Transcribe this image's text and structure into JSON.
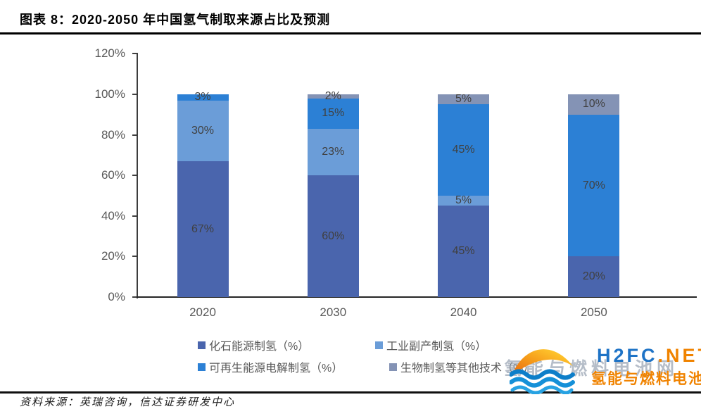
{
  "header": {
    "title": "图表 8：2020-2050 年中国氢气制取来源占比及预测"
  },
  "footer": {
    "source": "资料来源：英瑞咨询，信达证券研发中心"
  },
  "watermark": {
    "brand_blue": "H2FC",
    "brand_orange": ".NET",
    "subtitle": "氢能与燃料电池网",
    "ghost_text": "氢能与燃料电池网",
    "logo_icon": "sun-over-waves-logo",
    "colors": {
      "brand_blue": "#1e73c6",
      "brand_orange": "#f08300",
      "ghost_gray": "#97a2b2",
      "wave_blue": "#1189d4",
      "sun_orange": "#ee7d12",
      "sun_yellow": "#ffc92e"
    }
  },
  "chart_data": {
    "type": "bar",
    "stacked": true,
    "title": "2020-2050 年中国氢气制取来源占比及预测",
    "categories": [
      "2020",
      "2030",
      "2040",
      "2050"
    ],
    "series": [
      {
        "name": "化石能源制氢（%）",
        "color": "#4a65ad",
        "values": [
          67,
          60,
          45,
          20
        ]
      },
      {
        "name": "工业副产制氢（%）",
        "color": "#6b9dd8",
        "values": [
          30,
          23,
          5,
          0
        ]
      },
      {
        "name": "可再生能源电解制氢（%）",
        "color": "#2c80d5",
        "values": [
          3,
          15,
          45,
          70
        ]
      },
      {
        "name": "生物制氢等其他技术（%）",
        "color": "#8493b5",
        "values": [
          0,
          2,
          5,
          10
        ]
      }
    ],
    "ylabel": "",
    "xlabel": "",
    "ylim": [
      0,
      120
    ],
    "ytick_step": 20,
    "ytick_labels": [
      "0%",
      "20%",
      "40%",
      "60%",
      "80%",
      "100%",
      "120%"
    ],
    "grid": false,
    "legend_position": "bottom",
    "value_label_suffix": "%",
    "axis_color": "#262626",
    "tick_label_color": "#595959",
    "value_label_color": "#404040"
  }
}
